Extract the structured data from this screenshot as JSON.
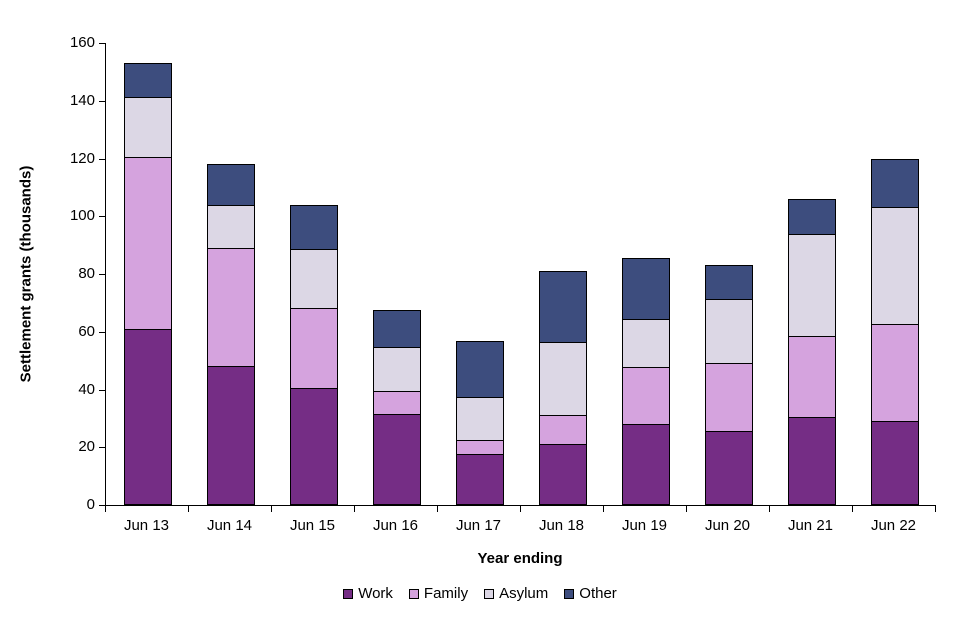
{
  "chart_data": {
    "type": "bar",
    "stacked": true,
    "title": "",
    "xlabel": "Year ending",
    "ylabel": "Settlement grants (thousands)",
    "ylim": [
      0,
      160
    ],
    "ytick_step": 20,
    "yticks": [
      0,
      20,
      40,
      60,
      80,
      100,
      120,
      140,
      160
    ],
    "grid": false,
    "legend_position": "bottom",
    "categories": [
      "Jun 13",
      "Jun 14",
      "Jun 15",
      "Jun 16",
      "Jun 17",
      "Jun 18",
      "Jun 19",
      "Jun 20",
      "Jun 21",
      "Jun 22"
    ],
    "series": [
      {
        "name": "Work",
        "color": "#752d85",
        "values": [
          61,
          48,
          40.5,
          31.5,
          17.5,
          21,
          28,
          25.5,
          30.5,
          29
        ]
      },
      {
        "name": "Family",
        "color": "#d5a3de",
        "values": [
          60,
          41.5,
          28,
          8.5,
          5.5,
          10.5,
          20,
          24,
          28.5,
          34
        ]
      },
      {
        "name": "Asylum",
        "color": "#dcd7e5",
        "values": [
          21,
          15,
          21,
          15.5,
          15,
          25.5,
          17,
          22.5,
          35.5,
          41
        ]
      },
      {
        "name": "Other",
        "color": "#3d4d7e",
        "values": [
          12,
          14.5,
          15.5,
          13,
          20,
          25,
          21.5,
          12,
          12.5,
          17
        ]
      }
    ],
    "totals": [
      154,
      119,
      105,
      68.5,
      58,
      82,
      86.5,
      84,
      107,
      121
    ]
  }
}
